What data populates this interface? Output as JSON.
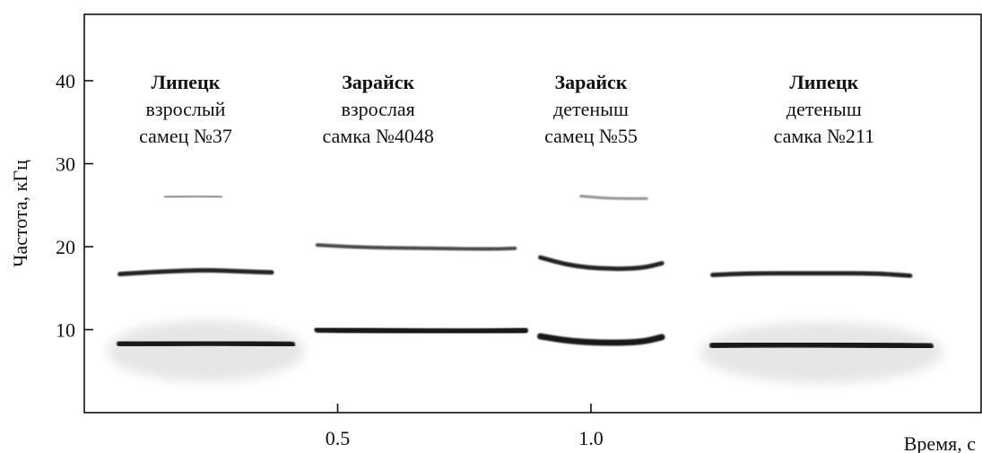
{
  "chart_data": {
    "type": "spectrogram",
    "xlabel": "Время, с",
    "ylabel": "Частота, кГц",
    "xlim": [
      0,
      1.77
    ],
    "ylim": [
      0,
      48
    ],
    "x_ticks": [
      {
        "value": 0.5,
        "label": "0.5"
      },
      {
        "value": 1.0,
        "label": "1.0"
      }
    ],
    "y_ticks": [
      {
        "value": 10,
        "label": "10"
      },
      {
        "value": 20,
        "label": "20"
      },
      {
        "value": 30,
        "label": "30"
      },
      {
        "value": 40,
        "label": "40"
      }
    ],
    "ink_color": "#111111",
    "calls": [
      {
        "name": "Липецк, взрослый самец №37",
        "place": "Липецк",
        "line2": "взрослый",
        "line3": "самец №37",
        "caption_x": 0.2,
        "noise": true,
        "bands": [
          {
            "kind": "fundamental",
            "points": [
              [
                0.07,
                8.3
              ],
              [
                0.15,
                8.3
              ],
              [
                0.25,
                8.4
              ],
              [
                0.35,
                8.3
              ],
              [
                0.41,
                8.2
              ]
            ]
          },
          {
            "kind": "harmonic",
            "points": [
              [
                0.07,
                16.7
              ],
              [
                0.15,
                17.0
              ],
              [
                0.24,
                17.2
              ],
              [
                0.32,
                17.0
              ],
              [
                0.37,
                16.9
              ]
            ]
          },
          {
            "kind": "harmonic_faint",
            "points": [
              [
                0.16,
                26.0
              ],
              [
                0.22,
                26.1
              ],
              [
                0.27,
                26.0
              ]
            ]
          }
        ]
      },
      {
        "name": "Зарайск, взрослая самка №4048",
        "place": "Зарайск",
        "line2": "взрослая",
        "line3": "самка №4048",
        "caption_x": 0.58,
        "noise": false,
        "bands": [
          {
            "kind": "fundamental",
            "points": [
              [
                0.46,
                10.0
              ],
              [
                0.55,
                9.9
              ],
              [
                0.68,
                9.8
              ],
              [
                0.8,
                9.8
              ],
              [
                0.87,
                9.9
              ]
            ]
          },
          {
            "kind": "harmonic_medium",
            "points": [
              [
                0.46,
                20.2
              ],
              [
                0.55,
                19.9
              ],
              [
                0.68,
                19.8
              ],
              [
                0.8,
                19.7
              ],
              [
                0.85,
                19.8
              ]
            ]
          }
        ]
      },
      {
        "name": "Зарайск, детеныш самец №55",
        "place": "Зарайск",
        "line2": "детеныш",
        "line3": "самец №55",
        "caption_x": 1.0,
        "noise": false,
        "bands": [
          {
            "kind": "fundamental",
            "points": [
              [
                0.9,
                9.2
              ],
              [
                0.96,
                8.6
              ],
              [
                1.03,
                8.4
              ],
              [
                1.1,
                8.5
              ],
              [
                1.14,
                9.1
              ]
            ]
          },
          {
            "kind": "harmonic",
            "points": [
              [
                0.9,
                18.7
              ],
              [
                0.96,
                17.7
              ],
              [
                1.03,
                17.3
              ],
              [
                1.1,
                17.4
              ],
              [
                1.14,
                18.0
              ]
            ]
          },
          {
            "kind": "harmonic_faint",
            "points": [
              [
                0.98,
                26.1
              ],
              [
                1.04,
                25.8
              ],
              [
                1.11,
                25.8
              ]
            ]
          }
        ]
      },
      {
        "name": "Липецк, детеныш самка №211",
        "place": "Липецк",
        "line2": "детеныш",
        "line3": "самка №211",
        "caption_x": 1.46,
        "noise": true,
        "bands": [
          {
            "kind": "fundamental",
            "points": [
              [
                1.24,
                8.1
              ],
              [
                1.32,
                8.2
              ],
              [
                1.45,
                8.2
              ],
              [
                1.58,
                8.1
              ],
              [
                1.67,
                8.0
              ]
            ]
          },
          {
            "kind": "harmonic",
            "points": [
              [
                1.24,
                16.6
              ],
              [
                1.32,
                16.8
              ],
              [
                1.45,
                16.8
              ],
              [
                1.56,
                16.8
              ],
              [
                1.63,
                16.5
              ]
            ]
          }
        ]
      }
    ]
  }
}
